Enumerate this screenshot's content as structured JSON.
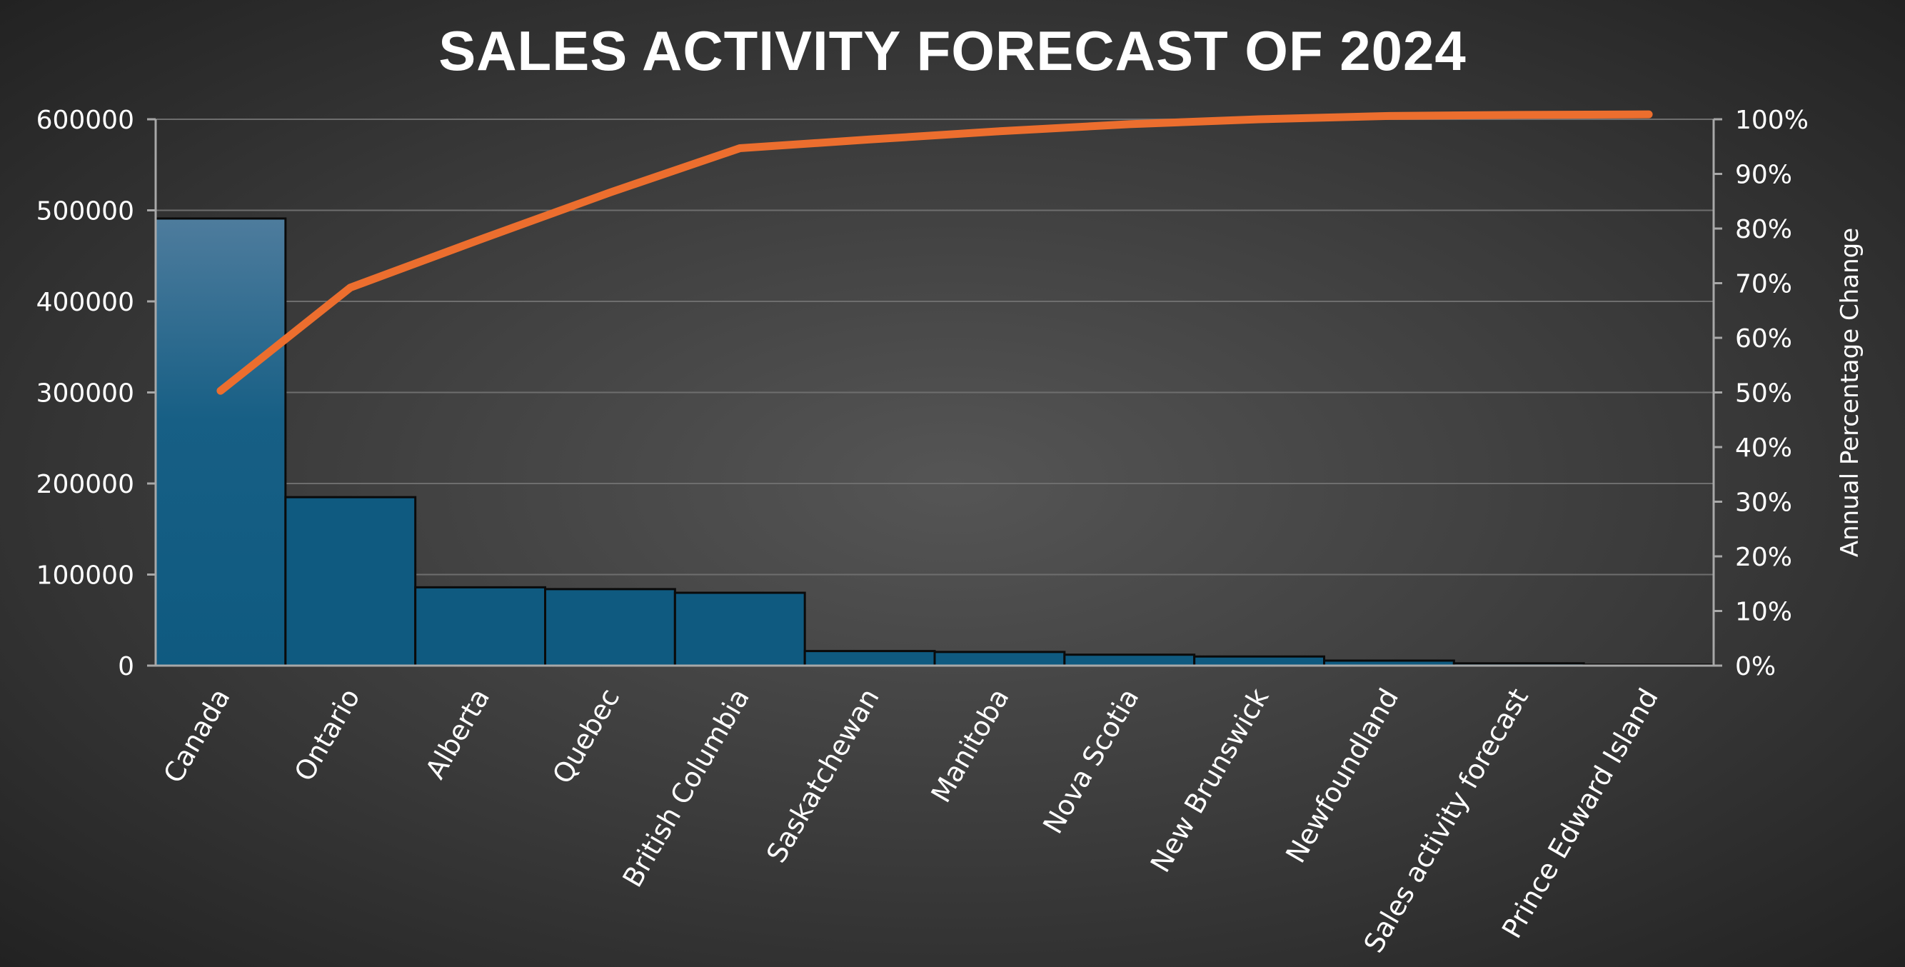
{
  "chart_data": {
    "type": "bar",
    "title": "SALES ACTIVITY FORECAST OF 2024",
    "xlabel": "",
    "ylabel": "",
    "y2label": "Annual Percentage Change",
    "ylim": [
      0,
      600000
    ],
    "y2lim": [
      0,
      1
    ],
    "yticks": [
      "0",
      "100000",
      "200000",
      "300000",
      "400000",
      "500000",
      "600000"
    ],
    "y2ticks": [
      "0%",
      "10%",
      "20%",
      "30%",
      "40%",
      "50%",
      "60%",
      "70%",
      "80%",
      "90%",
      "100%"
    ],
    "grid": true,
    "legend": "none",
    "categories": [
      "Canada",
      "Ontario",
      "Alberta",
      "Quebec",
      "British Columbia",
      "Saskatchewan",
      "Manitoba",
      "Nova Scotia",
      "New Brunswick",
      "Newfoundland",
      "Sales activity forecast",
      "Prince Edward Island"
    ],
    "series": [
      {
        "type": "bar",
        "values": [
          491000,
          185000,
          86000,
          84000,
          80000,
          16000,
          15000,
          12000,
          10000,
          5500,
          2500,
          1000
        ]
      },
      {
        "type": "line",
        "values": [
          0.503,
          0.692,
          0.78,
          0.866,
          0.947,
          0.963,
          0.978,
          0.991,
          1.0,
          1.006,
          1.008,
          1.009
        ]
      }
    ],
    "colors": {
      "bar_top": "#4e7c9d",
      "bar": "#0f5a80",
      "bar_edge": "#0a0a0a",
      "line": "#ec6e2e",
      "grid": "#6e6e6e",
      "axis": "#a8a8a8",
      "text": "#ffffff"
    }
  }
}
